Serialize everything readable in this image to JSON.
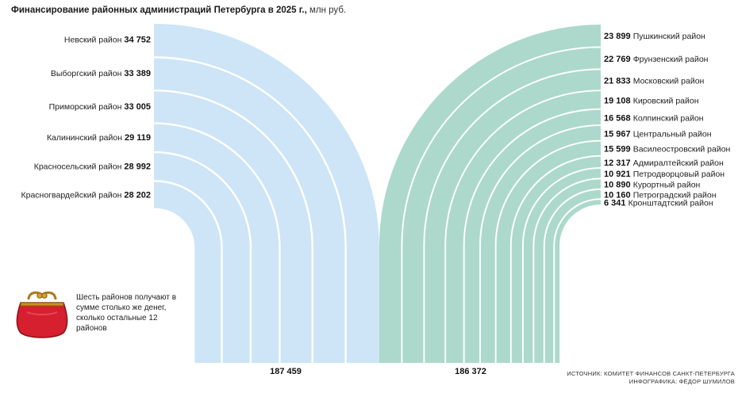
{
  "title": {
    "main": "Финансирование районных администраций Петербурга в 2025 г.,",
    "unit": " млн руб."
  },
  "chart_data": {
    "type": "bar",
    "title": "Финансирование районных администраций Петербурга в 2025 г., млн руб.",
    "left_group": {
      "total": "187 459",
      "color": "#cde5f6",
      "items": [
        {
          "name": "Невский район",
          "value": 34752,
          "label": "34 752"
        },
        {
          "name": "Выборгский район",
          "value": 33389,
          "label": "33 389"
        },
        {
          "name": "Приморский район",
          "value": 33005,
          "label": "33 005"
        },
        {
          "name": "Калининский район",
          "value": 29119,
          "label": "29 119"
        },
        {
          "name": "Красносельский район",
          "value": 28992,
          "label": "28 992"
        },
        {
          "name": "Красногвардейский район",
          "value": 28202,
          "label": "28 202"
        }
      ]
    },
    "right_group": {
      "total": "186 372",
      "color": "#acd9cb",
      "items": [
        {
          "name": "Пушкинский район",
          "value": 23899,
          "label": "23 899"
        },
        {
          "name": "Фрунзенский район",
          "value": 22769,
          "label": "22 769"
        },
        {
          "name": "Московский район",
          "value": 21833,
          "label": "21 833"
        },
        {
          "name": "Кировский район",
          "value": 19108,
          "label": "19 108"
        },
        {
          "name": "Колпинский район",
          "value": 16568,
          "label": "16 568"
        },
        {
          "name": "Центральный район",
          "value": 15967,
          "label": "15 967"
        },
        {
          "name": "Василеостровский район",
          "value": 15599,
          "label": "15 599"
        },
        {
          "name": "Адмиралтейский район",
          "value": 12317,
          "label": "12 317"
        },
        {
          "name": "Петродворцовый район",
          "value": 10921,
          "label": "10 921"
        },
        {
          "name": "Курортный район",
          "value": 10890,
          "label": "10 890"
        },
        {
          "name": "Петроградский район",
          "value": 10160,
          "label": "10 160"
        },
        {
          "name": "Кронштадтский район",
          "value": 6341,
          "label": "6 341"
        }
      ]
    }
  },
  "note": "Шесть районов получают в сумме столько же денег, сколько остальные 12 районов",
  "source": {
    "line1": "ИСТОЧНИК: КОМИТЕТ ФИНАНСОВ САНКТ-ПЕТЕРБУРГА",
    "line2": "ИНФОГРАФИКА: ФЁДОР ШУМИЛОВ"
  },
  "colors": {
    "left": "#cde5f6",
    "right": "#acd9cb",
    "purse": "#d6202f"
  },
  "icons": {
    "purse": "purse-icon"
  }
}
